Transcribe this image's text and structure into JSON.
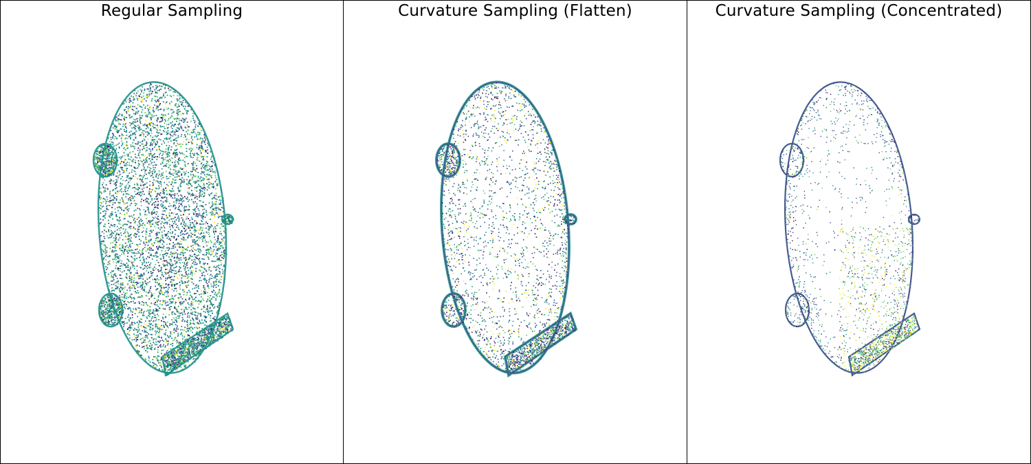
{
  "panels": [
    {
      "title": "Regular Sampling",
      "mode": "regular"
    },
    {
      "title": "Curvature Sampling (Flatten)",
      "mode": "flatten"
    },
    {
      "title": "Curvature Sampling (Concentrated)",
      "mode": "concentrated"
    }
  ],
  "colormap": {
    "name": "viridis",
    "stops": [
      "#440154",
      "#3b528b",
      "#21918c",
      "#5ec962",
      "#fde725"
    ]
  }
}
